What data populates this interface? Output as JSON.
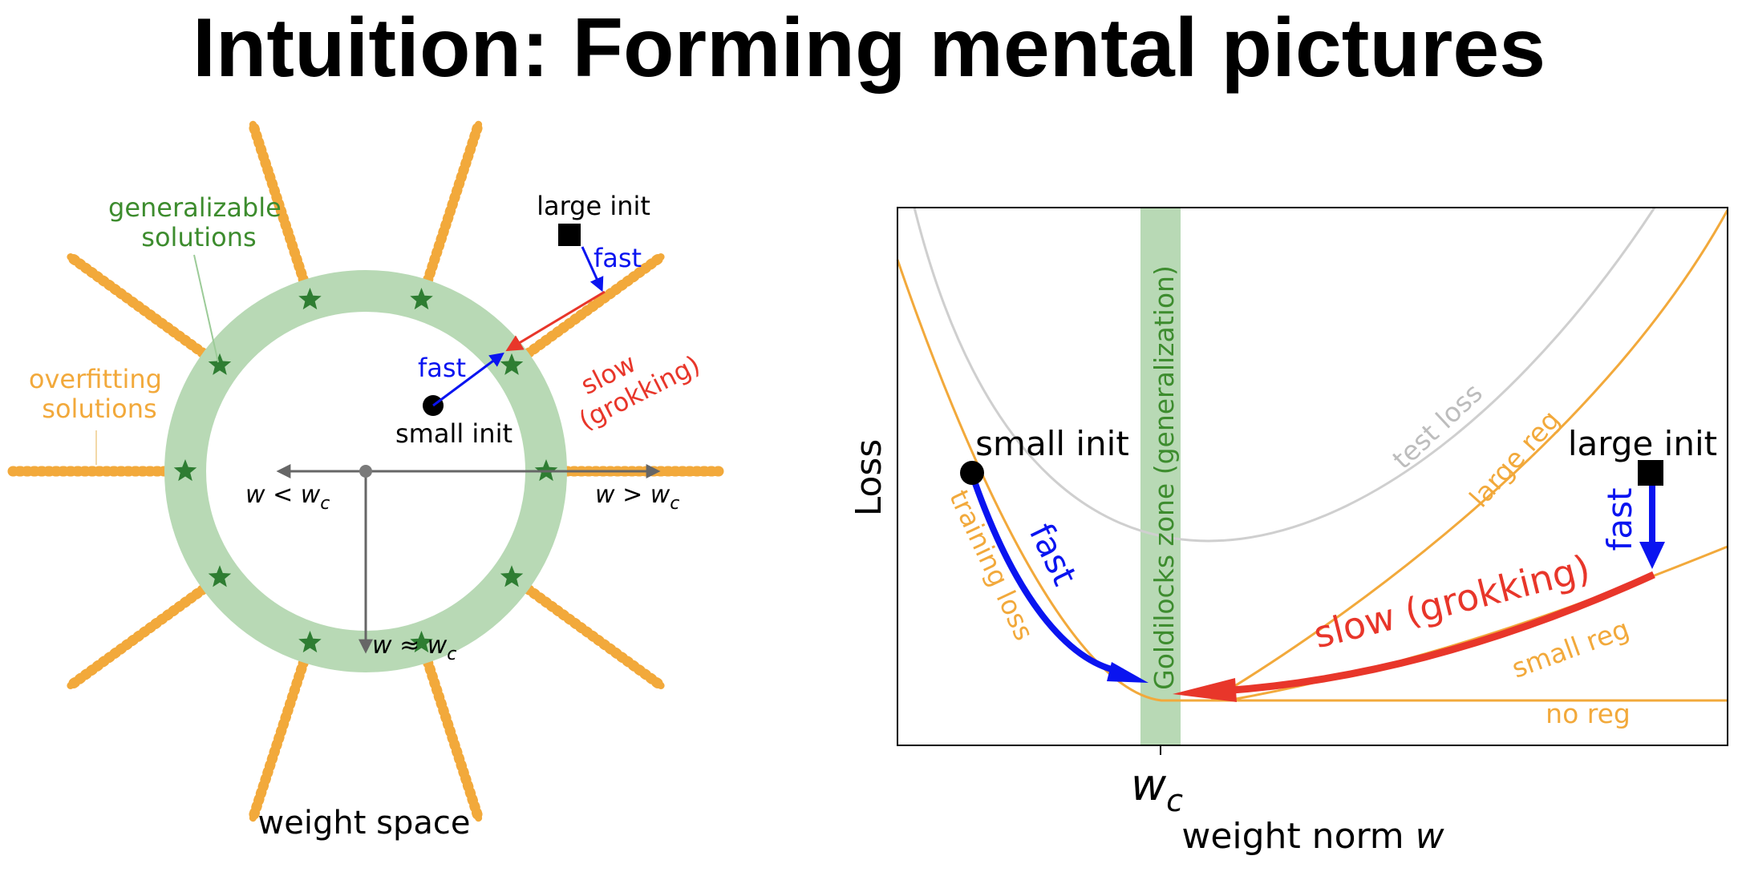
{
  "title": "Intuition: Forming mental pictures",
  "colors": {
    "orange": "#F2A93B",
    "green_ring": "#B8D9B5",
    "star": "#2E7D32",
    "green_label": "#3D8C2E",
    "blue": "#0A14F0",
    "red": "#E8362A",
    "gray": "#808080",
    "light_gray": "#CFCFCF",
    "black": "#000000"
  },
  "left": {
    "labels": {
      "generalizable": [
        "generalizable",
        "solutions"
      ],
      "overfitting": [
        "overfitting",
        "solutions"
      ],
      "large_init": "large init",
      "small_init": "small init",
      "fast_top": "fast",
      "fast_left": "fast",
      "slow": [
        "slow",
        "(grokking)"
      ],
      "w_less": "w < w",
      "w_greater": "w > w",
      "w_approx": "w ≈ w",
      "subscript": "c",
      "caption": "weight space"
    }
  },
  "right": {
    "labels": {
      "ylabel": "Loss",
      "xtick": "w",
      "xtick_sub": "c",
      "xlabel": "weight norm ",
      "xlabel_var": "w",
      "zone": "Goldilocks zone (generalization)",
      "test_loss": "test loss",
      "large_reg": "large reg",
      "small_reg": "small reg",
      "no_reg": "no reg",
      "training_loss": "training loss",
      "small_init": "small init",
      "large_init": "large init",
      "fast_left": "fast",
      "fast_right": "fast",
      "slow": "slow (grokking)"
    }
  }
}
